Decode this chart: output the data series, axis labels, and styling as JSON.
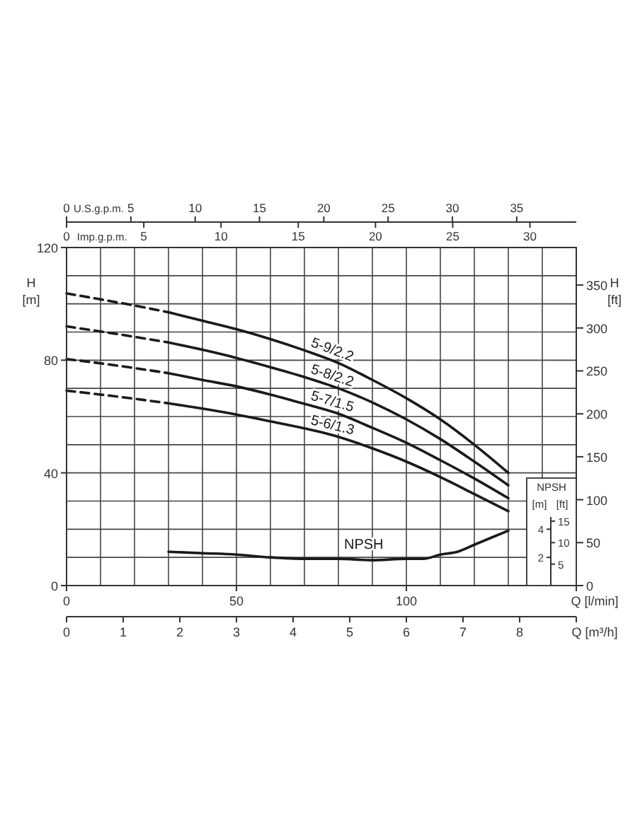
{
  "chart_data": [
    {
      "type": "line",
      "xlabel": "Q [l/min]",
      "ylabel": "H [m]",
      "y2label": "H [ft]",
      "x2label": "U.S.g.p.m.",
      "xlim": [
        0,
        150
      ],
      "xticks": [
        0,
        {
          "value": 10,
          "label": null
        },
        {
          "value": 20,
          "label": null
        },
        {
          "value": 30,
          "label": null
        },
        {
          "value": 40,
          "label": null
        },
        50,
        {
          "value": 60,
          "label": null
        },
        {
          "value": 70,
          "label": null
        },
        {
          "value": 80,
          "label": null
        },
        {
          "value": 90,
          "label": null
        },
        100,
        {
          "value": 110,
          "label": null
        },
        {
          "value": 120,
          "label": null
        },
        {
          "value": 130,
          "label": null
        },
        {
          "value": 140,
          "label": null
        }
      ],
      "ylim": [
        0,
        120
      ],
      "yticks": [
        0,
        {
          "value": 10,
          "label": null
        },
        {
          "value": 20,
          "label": null
        },
        {
          "value": 30,
          "label": null
        },
        40,
        {
          "value": 50,
          "label": null
        },
        {
          "value": 60,
          "label": null
        },
        {
          "value": 70,
          "label": null
        },
        80,
        {
          "value": 90,
          "label": null
        },
        {
          "value": 100,
          "label": null
        },
        {
          "value": 110,
          "label": null
        },
        120
      ],
      "y2lim": [
        0,
        393.7
      ],
      "y2ticks": [
        0,
        50,
        100,
        150,
        200,
        250,
        300,
        350
      ],
      "x2lim": [
        0,
        39.63
      ],
      "x2ticks": [
        0,
        5,
        10,
        15,
        20,
        25,
        30,
        35
      ],
      "grid": true,
      "series": [
        {
          "name": "5-9/2.2",
          "color": "#1a1a1a",
          "x": [
            30,
            40,
            50,
            60,
            70,
            80,
            90,
            100,
            110,
            120,
            130
          ],
          "values": [
            97,
            94,
            91,
            87.5,
            83.5,
            79,
            73,
            66.5,
            59,
            50,
            40
          ]
        },
        {
          "name": "5-8/2.2",
          "color": "#1a1a1a",
          "x": [
            30,
            40,
            50,
            60,
            70,
            80,
            90,
            100,
            110,
            120,
            130
          ],
          "values": [
            86.3,
            83.7,
            80.8,
            77.5,
            74,
            70,
            65,
            59,
            52,
            44,
            35.6
          ]
        },
        {
          "name": "5-7/1.5",
          "color": "#1a1a1a",
          "x": [
            30,
            40,
            50,
            60,
            70,
            80,
            90,
            100,
            110,
            120,
            130
          ],
          "values": [
            75.4,
            73,
            70.7,
            67.8,
            64.5,
            61,
            56,
            50.7,
            44.5,
            38,
            31
          ]
        },
        {
          "name": "5-6/1.3",
          "color": "#1a1a1a",
          "x": [
            30,
            40,
            50,
            60,
            70,
            80,
            90,
            100,
            110,
            120,
            130
          ],
          "values": [
            64.7,
            62.8,
            60.7,
            58.3,
            55.8,
            52.8,
            48.7,
            44,
            38.5,
            32.5,
            26.4
          ]
        },
        {
          "color": "#1a1a1a",
          "line_style": "dashed",
          "x": [
            0,
            10,
            20,
            30
          ],
          "values": [
            103.7,
            101.6,
            99.4,
            97
          ]
        },
        {
          "color": "#1a1a1a",
          "line_style": "dashed",
          "x": [
            0,
            10,
            20,
            30
          ],
          "values": [
            92,
            90.2,
            88.3,
            86.3
          ]
        },
        {
          "color": "#1a1a1a",
          "line_style": "dashed",
          "x": [
            0,
            10,
            20,
            30
          ],
          "values": [
            80.4,
            78.9,
            77.2,
            75.4
          ]
        },
        {
          "color": "#1a1a1a",
          "line_style": "dashed",
          "x": [
            0,
            10,
            20,
            30
          ],
          "values": [
            69.2,
            67.8,
            66.3,
            64.7
          ]
        }
      ]
    },
    {
      "type": "line",
      "title": "NPSH",
      "xlabel": "Q [m³/h]",
      "x2label": "Imp.g.p.m.",
      "ylabel": "[m]",
      "y2label": "[ft]",
      "xlim": [
        0,
        9
      ],
      "xticks": [
        0,
        1,
        2,
        3,
        4,
        5,
        6,
        7,
        8
      ],
      "x2lim": [
        0,
        33
      ],
      "x2ticks": [
        0,
        5,
        10,
        15,
        20,
        25,
        30
      ],
      "ylim": [
        0,
        24
      ],
      "yticks": [
        2,
        4
      ],
      "y2lim": [
        0,
        78.74
      ],
      "y2ticks": [
        5,
        10,
        15
      ],
      "series": [
        {
          "name": "NPSH",
          "color": "#1a1a1a",
          "x": [
            1.8,
            2.4,
            3.0,
            3.6,
            4.2,
            4.8,
            5.4,
            6.0,
            6.3,
            6.6,
            6.9,
            7.2,
            7.5,
            7.8
          ],
          "values": [
            2.4,
            2.3,
            2.2,
            2.0,
            1.9,
            1.9,
            1.8,
            1.9,
            1.9,
            2.2,
            2.4,
            2.9,
            3.4,
            3.9
          ]
        }
      ]
    }
  ]
}
